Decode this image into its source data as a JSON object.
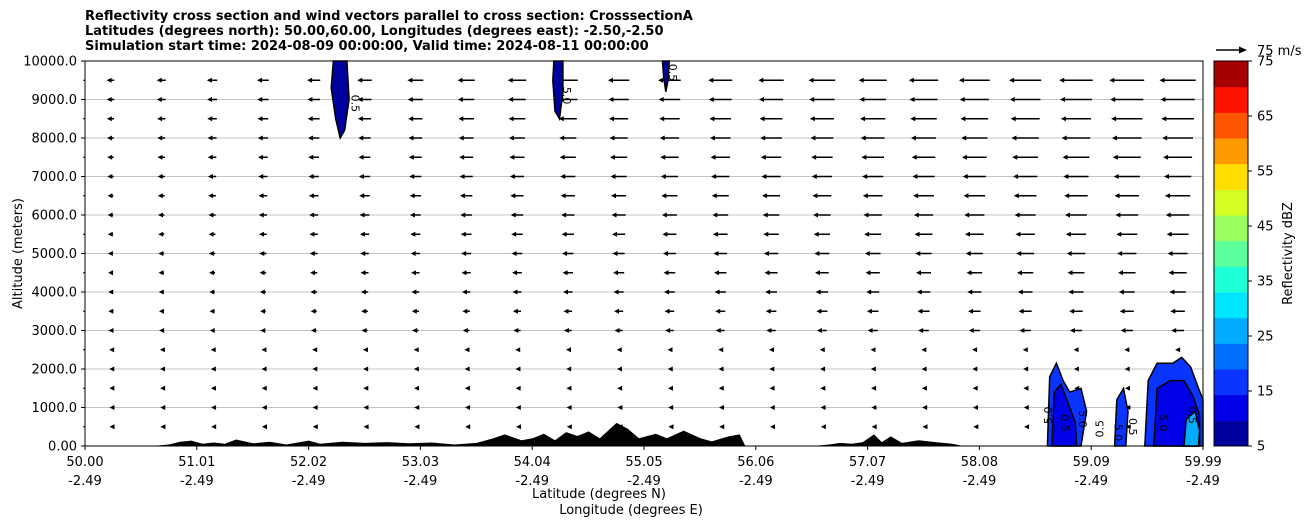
{
  "chart_data": {
    "type": "heatmap",
    "title_lines": [
      "Reflectivity cross section and wind vectors parallel to cross section: CrosssectionA",
      "Latitudes (degrees north): 50.00,60.00, Longitudes (degrees east): -2.50,-2.50",
      "Simulation start time: 2024-08-09 00:00:00, Valid time: 2024-08-11 00:00:00"
    ],
    "xlabel": "Latitude (degrees N)",
    "xlabel2": "Longitude (degrees E)",
    "ylabel": "Altitude (meters)",
    "xlim": [
      50.0,
      59.99
    ],
    "ylim": [
      0,
      10000
    ],
    "x_ticks": [
      {
        "lat": "50.00",
        "lon": "-2.49"
      },
      {
        "lat": "51.01",
        "lon": "-2.49"
      },
      {
        "lat": "52.02",
        "lon": "-2.49"
      },
      {
        "lat": "53.03",
        "lon": "-2.49"
      },
      {
        "lat": "54.04",
        "lon": "-2.49"
      },
      {
        "lat": "55.05",
        "lon": "-2.49"
      },
      {
        "lat": "56.06",
        "lon": "-2.49"
      },
      {
        "lat": "57.07",
        "lon": "-2.49"
      },
      {
        "lat": "58.08",
        "lon": "-2.49"
      },
      {
        "lat": "59.09",
        "lon": "-2.49"
      },
      {
        "lat": "59.99",
        "lon": "-2.49"
      }
    ],
    "y_ticks": [
      "0.00",
      "1000.0",
      "2000.0",
      "3000.0",
      "4000.0",
      "5000.0",
      "6000.0",
      "7000.0",
      "8000.0",
      "9000.0",
      "10000.0"
    ],
    "grid": "horizontal",
    "colorbar": {
      "label": "Reflectivity dBZ",
      "tick_labels": [
        "5",
        "15",
        "25",
        "35",
        "45",
        "55",
        "65",
        "75"
      ],
      "levels": [
        5,
        10,
        15,
        20,
        25,
        30,
        35,
        40,
        45,
        50,
        55,
        60,
        65,
        70,
        75
      ],
      "colors": [
        "#00009f",
        "#0000e8",
        "#0a35ff",
        "#0070ff",
        "#00acff",
        "#00e6ff",
        "#1fffd8",
        "#5cff9b",
        "#99ff5e",
        "#d5ff22",
        "#ffde00",
        "#ff9900",
        "#ff5500",
        "#ff1100",
        "#a80000"
      ]
    },
    "wind_key": {
      "value": 75,
      "label": "75 m/s"
    },
    "terrain_color": "#000000",
    "contour_labels": [
      "0.5",
      "5.0",
      "0.5",
      "5.0",
      "0.5",
      "5.0",
      "0.5",
      "5.0",
      "0.5",
      "5.0",
      "0.5"
    ]
  }
}
